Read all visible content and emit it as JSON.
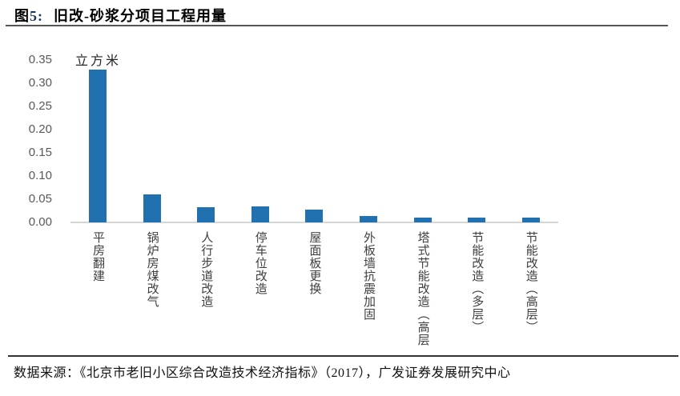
{
  "figure": {
    "tag_char": "图",
    "tag_num": "5:",
    "title": "旧改-砂浆分项目工程用量"
  },
  "chart_data": {
    "type": "bar",
    "title": "旧改-砂浆分项目工程用量",
    "ylabel": "立方米",
    "categories": [
      "平房翻建",
      "锅炉房煤改气",
      "人行步道改造",
      "停车位改造",
      "屋面板更换",
      "外板墙抗震加固",
      "塔式节能改造（高层",
      "节能改造（多层）",
      "节能改造（高层）"
    ],
    "values": [
      0.33,
      0.06,
      0.033,
      0.034,
      0.028,
      0.013,
      0.011,
      0.01,
      0.01
    ],
    "ylim": [
      0,
      0.35
    ],
    "ytick_step": 0.05,
    "ytick_labels": [
      "0.00",
      "0.05",
      "0.10",
      "0.15",
      "0.20",
      "0.25",
      "0.30",
      "0.35"
    ],
    "grid": false,
    "legend": "none",
    "bar_color": "#2171B1",
    "axis_line_color": "#d6d6d6",
    "tick_text_color": "#595959"
  },
  "footer": {
    "source_text": "数据来源：《北京市老旧小区综合改造技术经济指标》（2017），广发证券发展研究中心"
  }
}
